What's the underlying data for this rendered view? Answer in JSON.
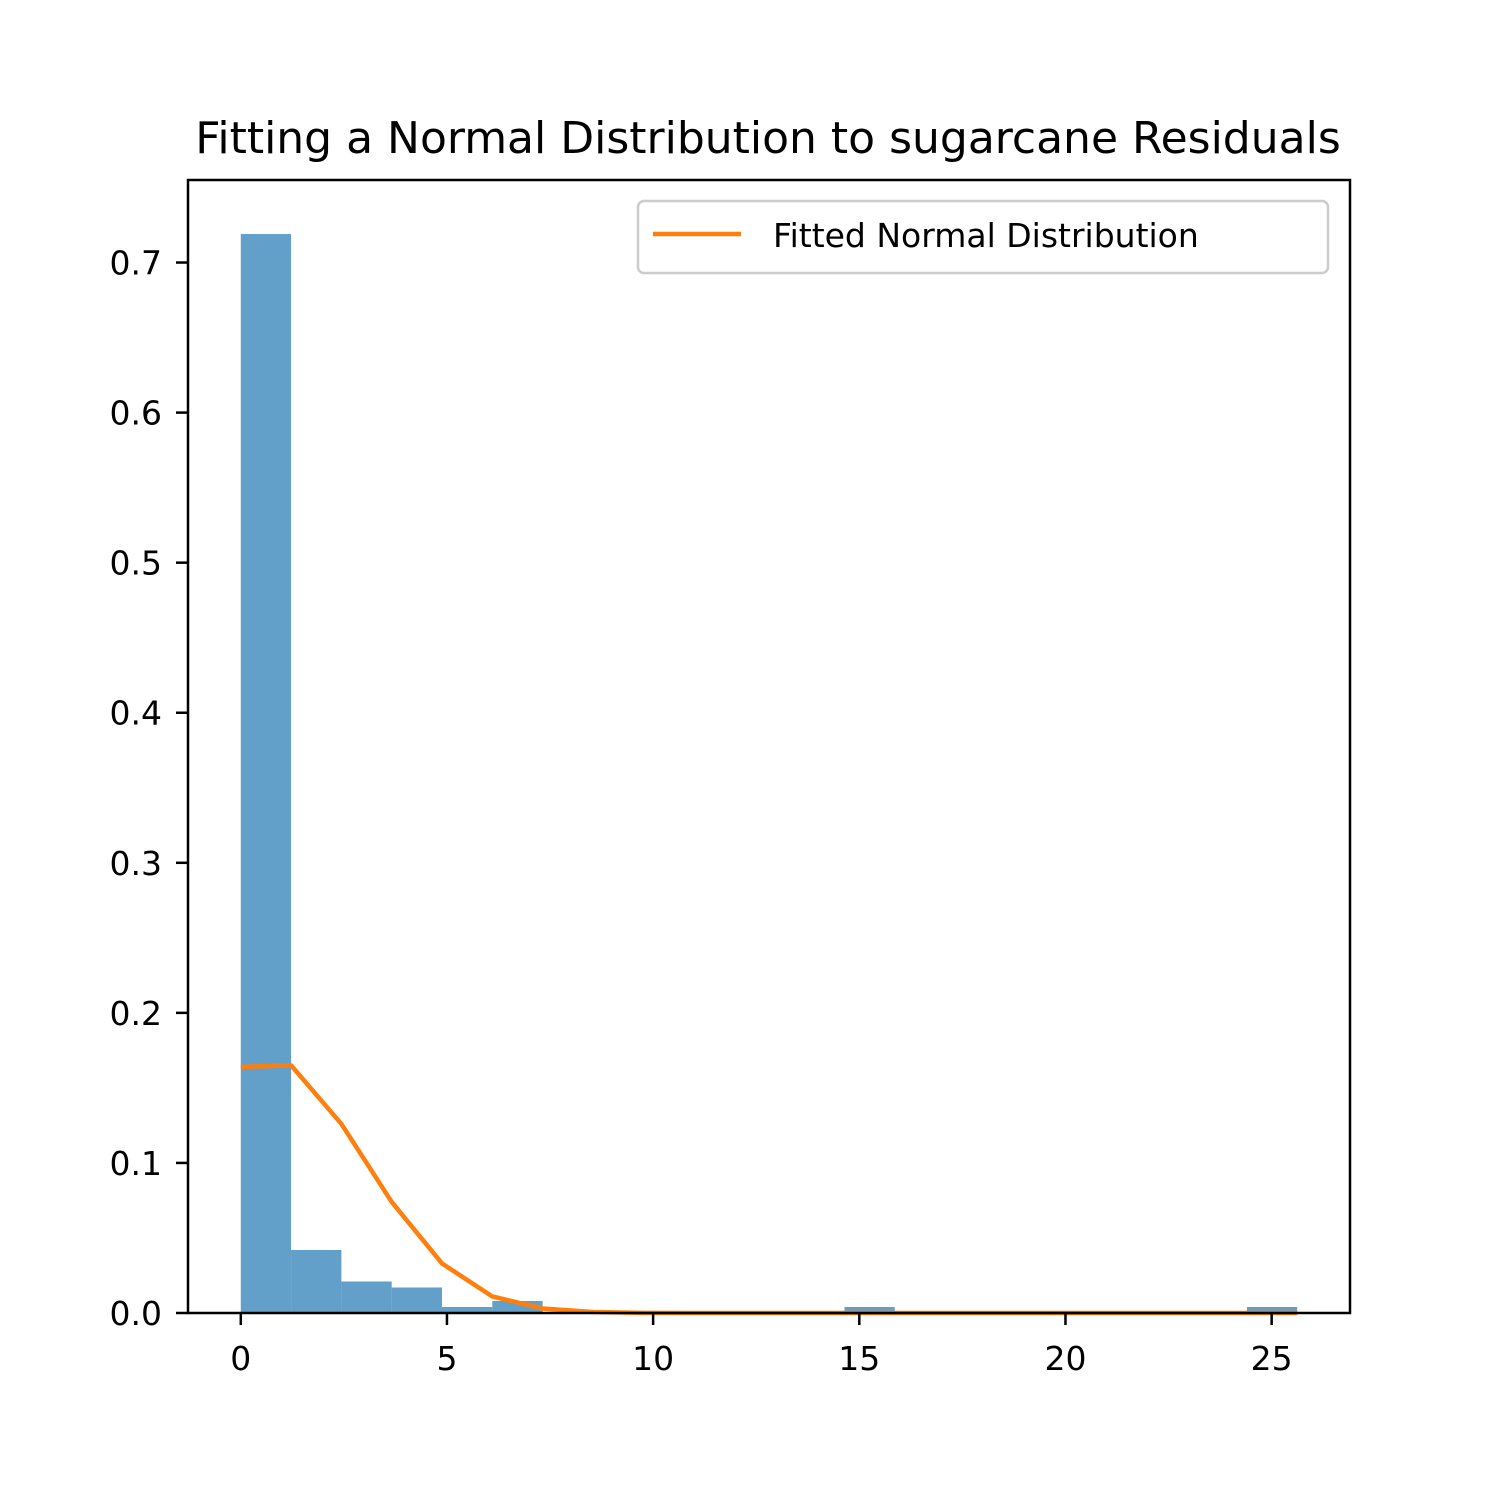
{
  "chart_data": {
    "type": "bar",
    "title": "Fitting a Normal Distribution to sugarcane Residuals",
    "xlabel": "",
    "ylabel": "",
    "xlim": [
      -1.28,
      26.9
    ],
    "ylim": [
      0,
      0.755
    ],
    "xticks": [
      0,
      5,
      10,
      15,
      20,
      25
    ],
    "xtick_labels": [
      "0",
      "5",
      "10",
      "15",
      "20",
      "25"
    ],
    "yticks": [
      0.0,
      0.1,
      0.2,
      0.3,
      0.4,
      0.5,
      0.6,
      0.7
    ],
    "ytick_labels": [
      "0.0",
      "0.1",
      "0.2",
      "0.3",
      "0.4",
      "0.5",
      "0.6",
      "0.7"
    ],
    "grid": false,
    "legend_position": "top-right",
    "histogram": {
      "color": "#1f77b4",
      "bin_edges": [
        0,
        1.22,
        2.44,
        3.66,
        4.88,
        6.1,
        7.32,
        8.54,
        9.76,
        10.98,
        12.2,
        13.42,
        14.64,
        15.86,
        17.08,
        18.3,
        19.52,
        20.74,
        21.96,
        23.18,
        24.4,
        25.62
      ],
      "values": [
        0.719,
        0.042,
        0.021,
        0.017,
        0.004,
        0.008,
        0,
        0,
        0,
        0,
        0,
        0,
        0.004,
        0,
        0,
        0,
        0,
        0,
        0,
        0,
        0.004
      ]
    },
    "series": [
      {
        "name": "Fitted Normal Distribution",
        "color": "#ff7f0e",
        "x": [
          0,
          1.22,
          2.44,
          3.66,
          4.88,
          6.1,
          7.32,
          8.54,
          9.76,
          10.98,
          12.2,
          13.42,
          14.64,
          15.86,
          17.08,
          18.3,
          19.52,
          20.74,
          21.96,
          23.18,
          24.4,
          25.62
        ],
        "y": [
          0.164,
          0.165,
          0.126,
          0.074,
          0.033,
          0.011,
          0.003,
          0.0007,
          0.0001,
          0,
          0,
          0,
          0,
          0,
          0,
          0,
          0,
          0,
          0,
          0,
          0,
          0
        ]
      }
    ]
  }
}
